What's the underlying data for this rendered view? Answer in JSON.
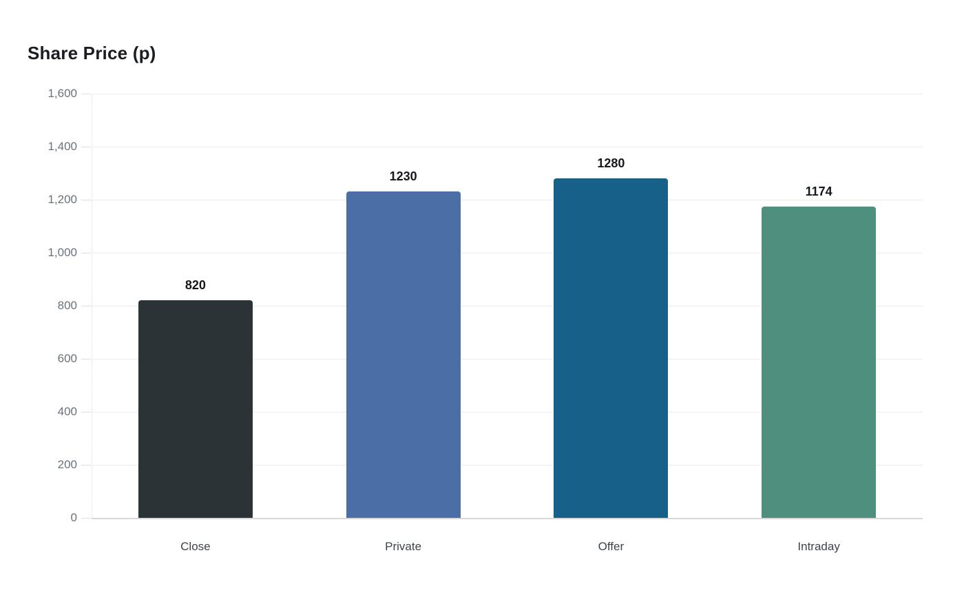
{
  "title": "Share Price (p)",
  "chart_data": {
    "type": "bar",
    "title": "Share Price (p)",
    "categories": [
      "Close",
      "Private",
      "Offer",
      "Intraday"
    ],
    "values": [
      820,
      1230,
      1280,
      1174
    ],
    "value_labels": [
      "820",
      "1230",
      "1280",
      "1174"
    ],
    "bar_colors": [
      "#2b3336",
      "#4a6ea5",
      "#166089",
      "#4f8f7d"
    ],
    "xlabel": "",
    "ylabel": "",
    "ylim": [
      0,
      1600
    ],
    "ytick_step": 200,
    "ytick_labels": [
      "0",
      "200",
      "400",
      "600",
      "800",
      "1,000",
      "1,200",
      "1,400",
      "1,600"
    ],
    "grid": "horizontal",
    "legend": "none"
  }
}
